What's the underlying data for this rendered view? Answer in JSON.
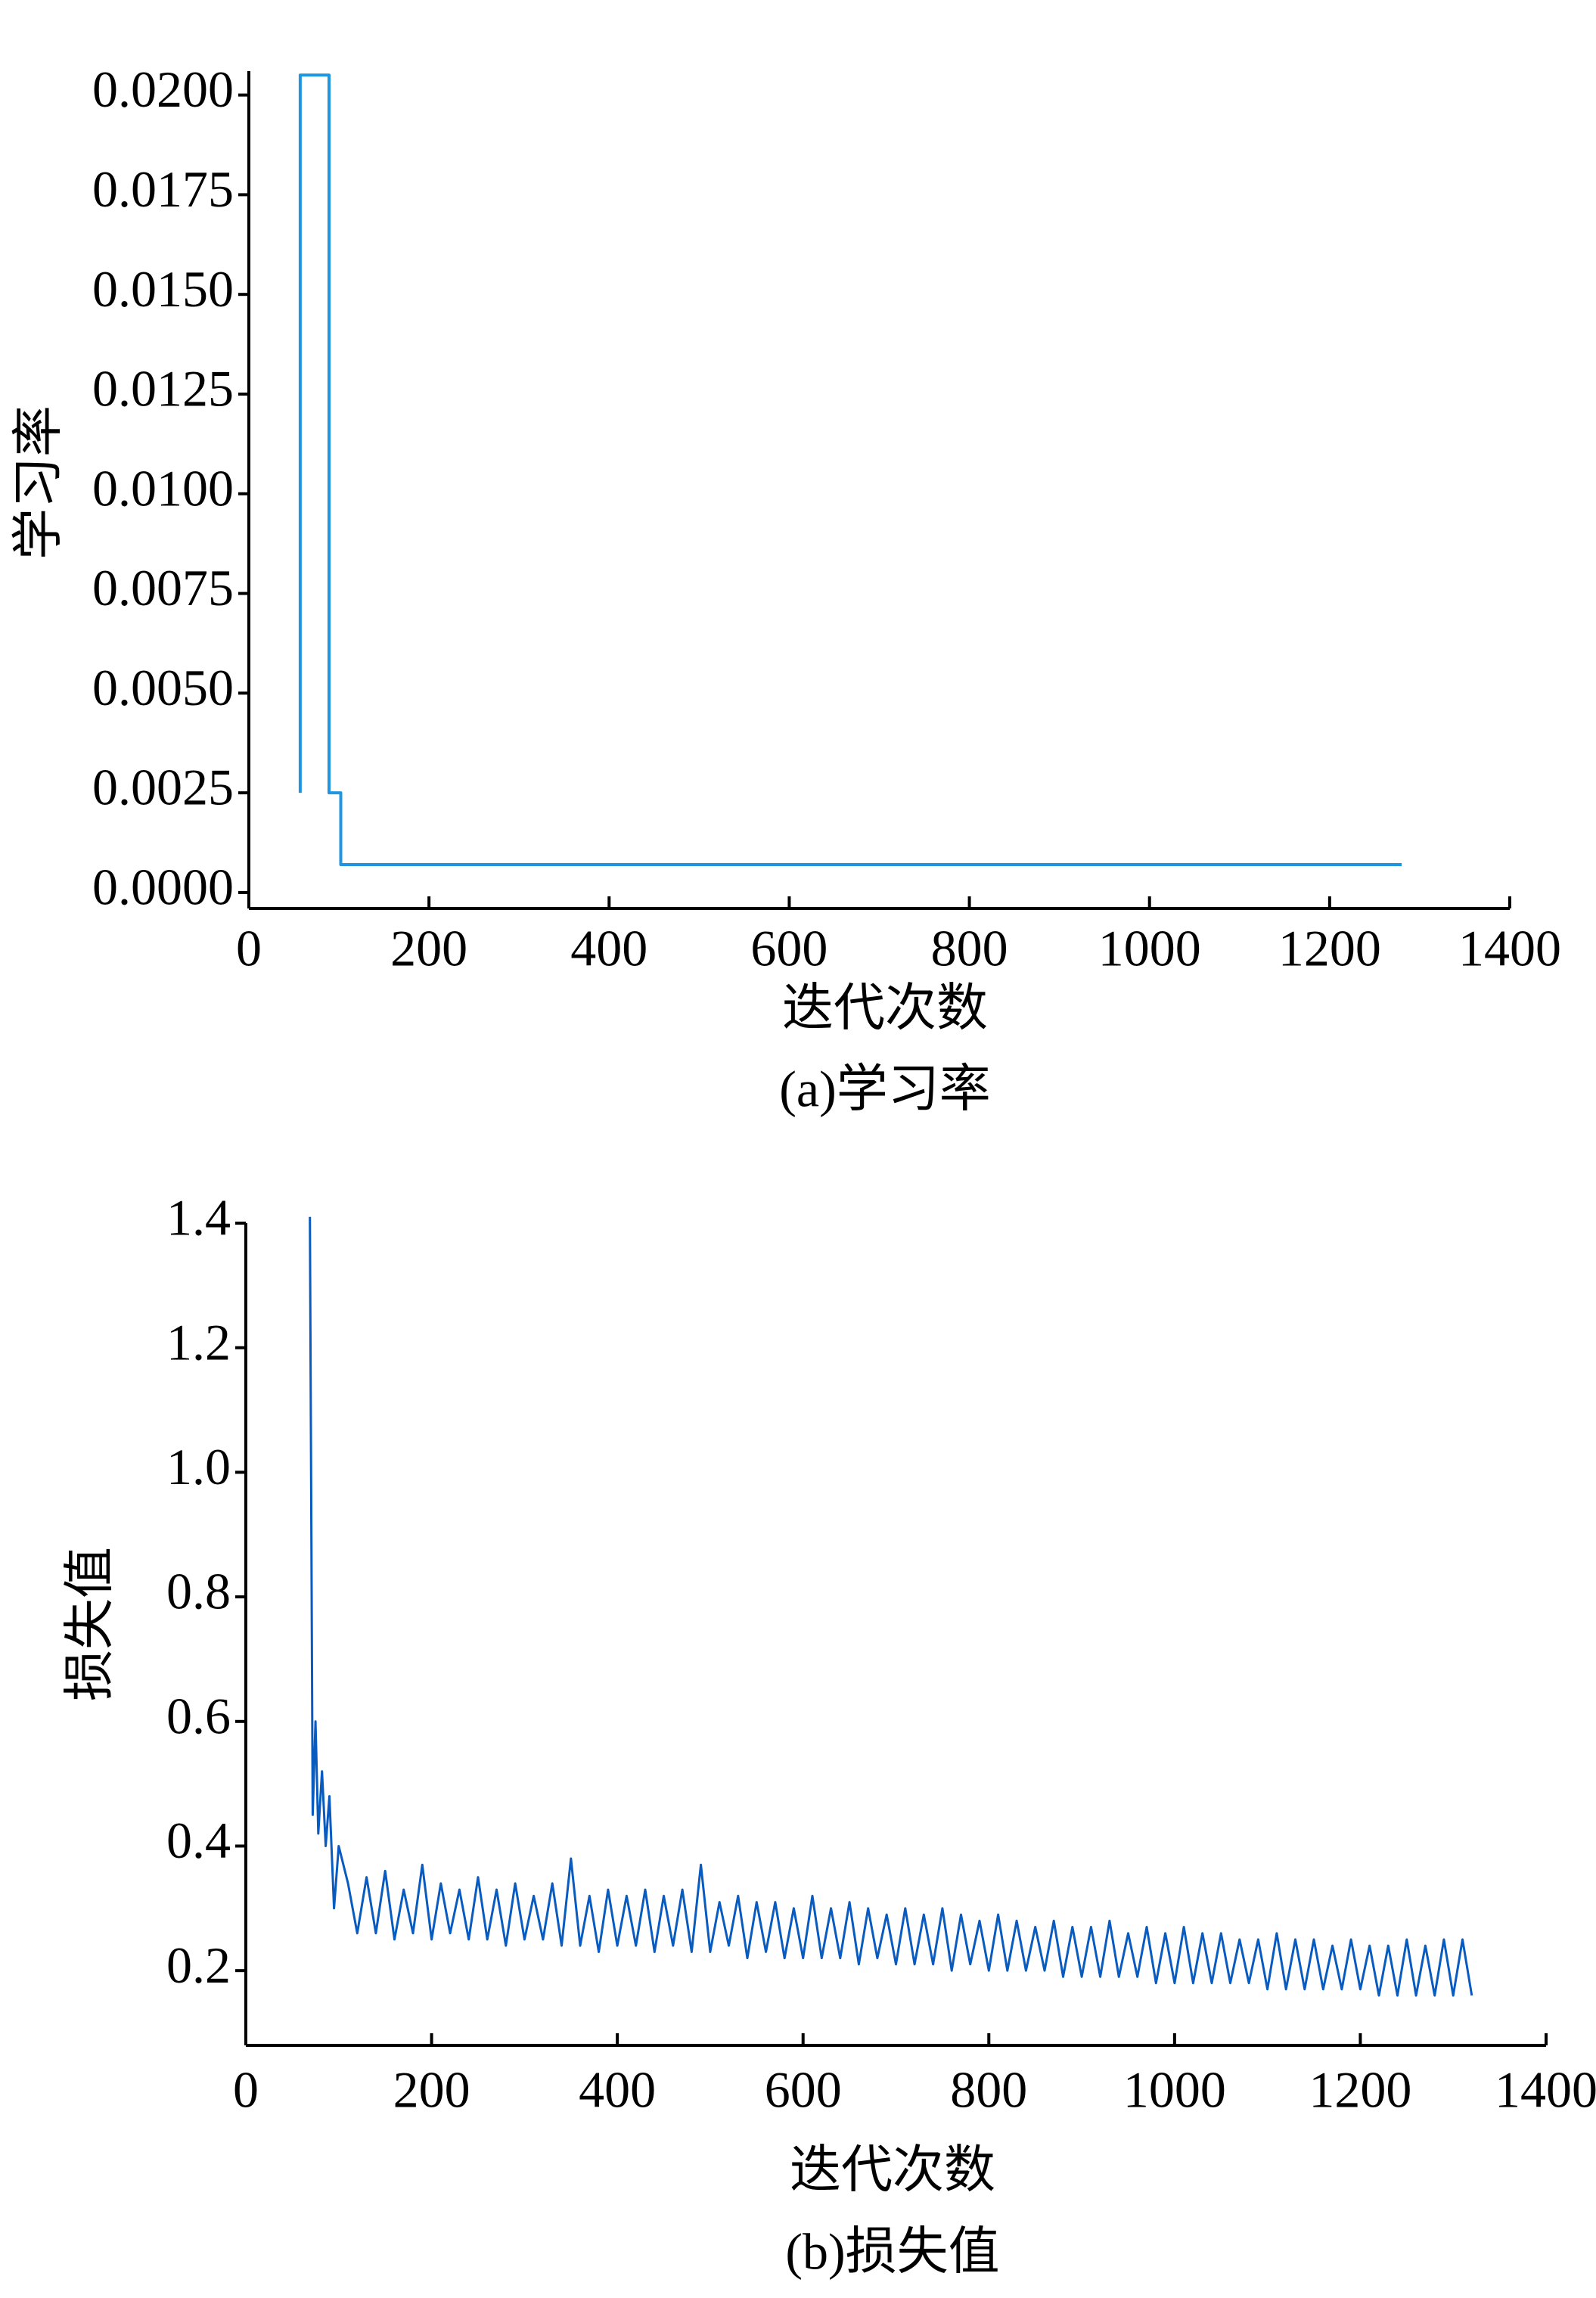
{
  "chart_data": [
    {
      "type": "line",
      "title": "(a)学习率",
      "x_label": "迭代次数",
      "y_label": "学习率",
      "color": "#2196e0",
      "x": [
        57,
        57,
        89,
        89,
        102,
        102,
        1280
      ],
      "values": [
        0.0025,
        0.0205,
        0.0205,
        0.0025,
        0.0025,
        0.0007,
        0.0007
      ],
      "xlim": [
        0,
        1400
      ],
      "xticks": [
        0,
        200,
        400,
        600,
        800,
        1000,
        1200,
        1400
      ],
      "ylim": [
        -0.0004,
        0.0206
      ],
      "yticks": [
        {
          "value": 0,
          "label": "0.0000"
        },
        0.0025,
        {
          "value": 0.005,
          "label": "0.0050"
        },
        0.0075,
        {
          "value": 0.01,
          "label": "0.0100"
        },
        0.0125,
        {
          "value": 0.015,
          "label": "0.0150"
        },
        0.0175,
        {
          "value": 0.02,
          "label": "0.0200"
        }
      ]
    },
    {
      "type": "line",
      "title": "(b)损失值",
      "x_label": "迭代次数",
      "y_label": "损失值",
      "color": "#0a5bbf",
      "x": [
        69,
        72,
        75,
        78,
        82,
        86,
        90,
        95,
        100,
        110,
        120,
        130,
        140,
        150,
        160,
        170,
        180,
        190,
        200,
        210,
        220,
        230,
        240,
        250,
        260,
        270,
        280,
        290,
        300,
        310,
        320,
        330,
        340,
        350,
        360,
        370,
        380,
        390,
        400,
        410,
        420,
        430,
        440,
        450,
        460,
        470,
        480,
        490,
        500,
        510,
        520,
        530,
        540,
        550,
        560,
        570,
        580,
        590,
        600,
        610,
        620,
        630,
        640,
        650,
        660,
        670,
        680,
        690,
        700,
        710,
        720,
        730,
        740,
        750,
        760,
        770,
        780,
        790,
        800,
        810,
        820,
        830,
        840,
        850,
        860,
        870,
        880,
        890,
        900,
        910,
        920,
        930,
        940,
        950,
        960,
        970,
        980,
        990,
        1000,
        1010,
        1020,
        1030,
        1040,
        1050,
        1060,
        1070,
        1080,
        1090,
        1100,
        1110,
        1120,
        1130,
        1140,
        1150,
        1160,
        1170,
        1180,
        1190,
        1200,
        1210,
        1220,
        1230,
        1240,
        1250,
        1260,
        1270,
        1280,
        1290,
        1300,
        1310,
        1320
      ],
      "values": [
        1.41,
        0.45,
        0.6,
        0.42,
        0.52,
        0.4,
        0.48,
        0.3,
        0.4,
        0.34,
        0.26,
        0.35,
        0.26,
        0.36,
        0.25,
        0.33,
        0.26,
        0.37,
        0.25,
        0.34,
        0.26,
        0.33,
        0.25,
        0.35,
        0.25,
        0.33,
        0.24,
        0.34,
        0.25,
        0.32,
        0.25,
        0.34,
        0.24,
        0.38,
        0.24,
        0.32,
        0.23,
        0.33,
        0.24,
        0.32,
        0.24,
        0.33,
        0.23,
        0.32,
        0.24,
        0.33,
        0.23,
        0.37,
        0.23,
        0.31,
        0.24,
        0.32,
        0.22,
        0.31,
        0.23,
        0.31,
        0.22,
        0.3,
        0.22,
        0.32,
        0.22,
        0.3,
        0.22,
        0.31,
        0.21,
        0.3,
        0.22,
        0.29,
        0.21,
        0.3,
        0.21,
        0.29,
        0.21,
        0.3,
        0.2,
        0.29,
        0.21,
        0.28,
        0.2,
        0.29,
        0.2,
        0.28,
        0.2,
        0.27,
        0.2,
        0.28,
        0.19,
        0.27,
        0.19,
        0.27,
        0.19,
        0.28,
        0.19,
        0.26,
        0.19,
        0.27,
        0.18,
        0.26,
        0.18,
        0.27,
        0.18,
        0.26,
        0.18,
        0.26,
        0.18,
        0.25,
        0.18,
        0.25,
        0.17,
        0.26,
        0.17,
        0.25,
        0.17,
        0.25,
        0.17,
        0.24,
        0.17,
        0.25,
        0.17,
        0.24,
        0.16,
        0.24,
        0.16,
        0.25,
        0.16,
        0.24,
        0.16,
        0.25,
        0.16,
        0.25,
        0.16
      ],
      "xlim": [
        0,
        1400
      ],
      "xticks": [
        0,
        200,
        400,
        600,
        800,
        1000,
        1200,
        1400
      ],
      "ylim": [
        0.08,
        1.4
      ],
      "yticks": [
        0.2,
        0.4,
        0.6,
        0.8,
        {
          "value": 1,
          "label": "1.0"
        },
        1.2,
        1.4
      ]
    }
  ]
}
